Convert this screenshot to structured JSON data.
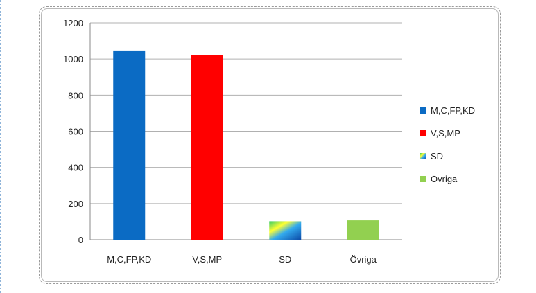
{
  "chart_data": {
    "type": "bar",
    "categories": [
      "M,C,FP,KD",
      "V,S,MP",
      "SD",
      "Övriga"
    ],
    "values": [
      1047,
      1020,
      102,
      107
    ],
    "ylim": [
      0,
      1200
    ],
    "yticks": [
      0,
      200,
      400,
      600,
      800,
      1000,
      1200
    ],
    "title": "",
    "xlabel": "",
    "ylabel": "",
    "grid": true,
    "legend_position": "right",
    "legend": [
      "M,C,FP,KD",
      "V,S,MP",
      "SD",
      "Övriga"
    ],
    "colors": [
      "#0b6bc4",
      "#ff0000",
      "gradient-blue-yellow",
      "#92d050"
    ]
  }
}
